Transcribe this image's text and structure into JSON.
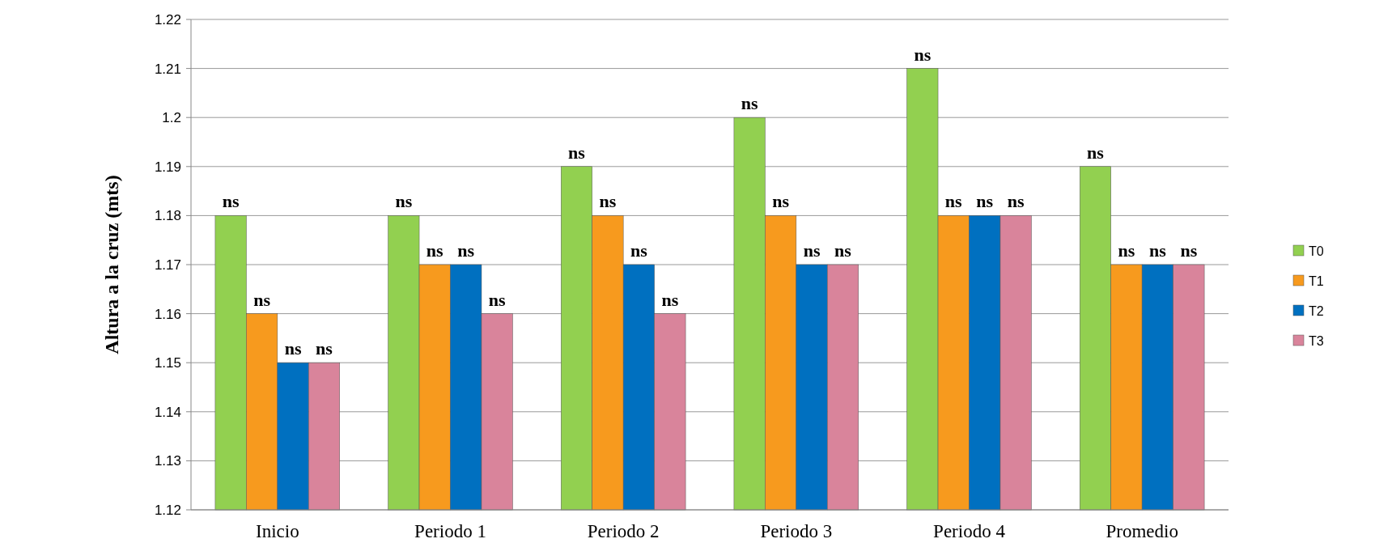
{
  "chart_data": {
    "type": "bar",
    "ylabel": "Altura a la cruz (mts)",
    "categories": [
      "Inicio",
      "Periodo 1",
      "Periodo 2",
      "Periodo 3",
      "Periodo 4",
      "Promedio"
    ],
    "series": [
      {
        "name": "T0",
        "color": "#92d050",
        "values": [
          1.18,
          1.18,
          1.19,
          1.2,
          1.21,
          1.19
        ],
        "value_labels": [
          "ns",
          "ns",
          "ns",
          "ns",
          "ns",
          "ns"
        ]
      },
      {
        "name": "T1",
        "color": "#f79a1e",
        "values": [
          1.16,
          1.17,
          1.18,
          1.18,
          1.18,
          1.17
        ],
        "value_labels": [
          "ns",
          "ns",
          "ns",
          "ns",
          "ns",
          "ns"
        ]
      },
      {
        "name": "T2",
        "color": "#0070c0",
        "values": [
          1.15,
          1.17,
          1.17,
          1.17,
          1.18,
          1.17
        ],
        "value_labels": [
          "ns",
          "ns",
          "ns",
          "ns",
          "ns",
          "ns"
        ]
      },
      {
        "name": "T3",
        "color": "#d9849b",
        "values": [
          1.15,
          1.16,
          1.16,
          1.17,
          1.18,
          1.17
        ],
        "value_labels": [
          "ns",
          "ns",
          "ns",
          "ns",
          "ns",
          "ns"
        ]
      }
    ],
    "ylim": [
      1.12,
      1.22
    ],
    "yticks": [
      1.12,
      1.13,
      1.14,
      1.15,
      1.16,
      1.17,
      1.18,
      1.19,
      1.2,
      1.21,
      1.22
    ],
    "grid": "y",
    "legend": "right"
  }
}
